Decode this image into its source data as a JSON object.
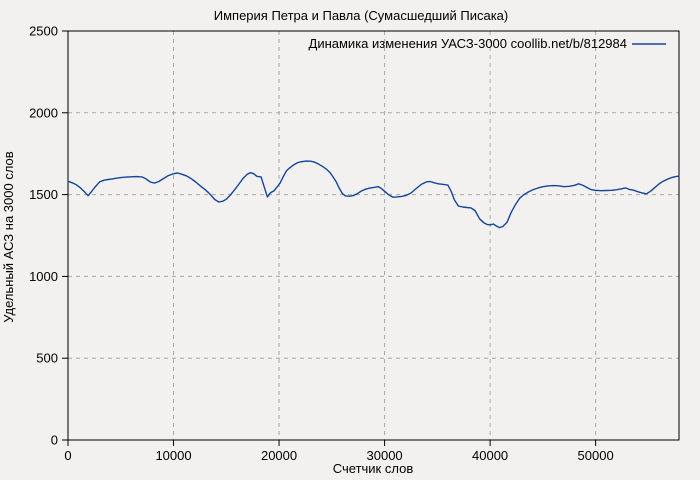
{
  "window": {
    "background": "#f2f1ef",
    "axis_color": "#000000",
    "grid_color": "#a9a9a9",
    "text_color": "#000000"
  },
  "chart_data": {
    "type": "line",
    "title": "Империя Петра и Павла (Сумасшедший Писака)",
    "xlabel": "Счетчик слов",
    "ylabel": "Удельный АСЗ на 3000 слов",
    "xlim": [
      0,
      57900
    ],
    "ylim": [
      0,
      2500
    ],
    "xticks": [
      0,
      10000,
      20000,
      30000,
      40000,
      50000
    ],
    "yticks": [
      0,
      500,
      1000,
      1500,
      2000,
      2500
    ],
    "grid": true,
    "legend": {
      "label": "Динамика изменения УАСЗ-3000 coollib.net/b/812984",
      "position": "top-right-inside",
      "line_color": "#15459b"
    },
    "series": [
      {
        "name": "Динамика изменения УАСЗ-3000 coollib.net/b/812984",
        "color": "#15459b",
        "x": [
          0,
          400,
          800,
          1200,
          1600,
          1900,
          2200,
          2600,
          3000,
          3400,
          3800,
          4200,
          4600,
          5000,
          5500,
          6000,
          6500,
          7000,
          7400,
          7800,
          8200,
          8600,
          9000,
          9500,
          10000,
          10400,
          10800,
          11200,
          11600,
          12100,
          12600,
          13000,
          13500,
          13900,
          14300,
          14700,
          15000,
          15400,
          15800,
          16200,
          16600,
          17000,
          17300,
          17600,
          17900,
          18300,
          18600,
          18900,
          19200,
          19500,
          19800,
          20100,
          20400,
          20700,
          21000,
          21400,
          21800,
          22200,
          22600,
          23000,
          23300,
          23700,
          24100,
          24500,
          24800,
          25100,
          25400,
          25700,
          26000,
          26300,
          26700,
          27000,
          27400,
          27800,
          28200,
          28600,
          29000,
          29400,
          29700,
          30000,
          30400,
          30800,
          31200,
          31600,
          32000,
          32500,
          33000,
          33500,
          34000,
          34300,
          34700,
          35100,
          35500,
          36000,
          36300,
          36600,
          37000,
          37400,
          37800,
          38200,
          38600,
          39000,
          39400,
          39700,
          40000,
          40300,
          40600,
          40900,
          41200,
          41600,
          42000,
          42400,
          42800,
          43200,
          43600,
          44000,
          44500,
          45000,
          45500,
          46000,
          46500,
          47000,
          47500,
          48000,
          48400,
          48800,
          49200,
          49600,
          50000,
          50500,
          51000,
          51500,
          52000,
          52400,
          52800,
          53200,
          53600,
          54000,
          54400,
          54800,
          55200,
          55600,
          56000,
          56400,
          56800,
          57200,
          57600,
          57900
        ],
        "y": [
          1582,
          1572,
          1560,
          1540,
          1514,
          1493,
          1516,
          1549,
          1578,
          1588,
          1592,
          1596,
          1600,
          1604,
          1607,
          1609,
          1610,
          1608,
          1596,
          1577,
          1570,
          1580,
          1596,
          1616,
          1628,
          1632,
          1624,
          1615,
          1601,
          1577,
          1550,
          1530,
          1500,
          1470,
          1455,
          1460,
          1472,
          1498,
          1530,
          1565,
          1600,
          1625,
          1634,
          1628,
          1612,
          1608,
          1545,
          1486,
          1512,
          1522,
          1545,
          1571,
          1610,
          1645,
          1663,
          1682,
          1696,
          1702,
          1705,
          1704,
          1700,
          1688,
          1673,
          1655,
          1637,
          1610,
          1580,
          1540,
          1506,
          1492,
          1490,
          1493,
          1505,
          1522,
          1533,
          1540,
          1544,
          1549,
          1537,
          1520,
          1498,
          1484,
          1486,
          1489,
          1494,
          1510,
          1537,
          1563,
          1578,
          1580,
          1572,
          1566,
          1563,
          1558,
          1520,
          1470,
          1430,
          1424,
          1421,
          1419,
          1400,
          1352,
          1328,
          1318,
          1315,
          1320,
          1308,
          1298,
          1305,
          1330,
          1392,
          1438,
          1478,
          1500,
          1515,
          1528,
          1540,
          1548,
          1553,
          1555,
          1554,
          1548,
          1551,
          1557,
          1566,
          1556,
          1543,
          1530,
          1526,
          1524,
          1525,
          1526,
          1530,
          1535,
          1541,
          1532,
          1527,
          1518,
          1510,
          1505,
          1520,
          1542,
          1565,
          1582,
          1594,
          1604,
          1610,
          1613
        ]
      }
    ]
  }
}
